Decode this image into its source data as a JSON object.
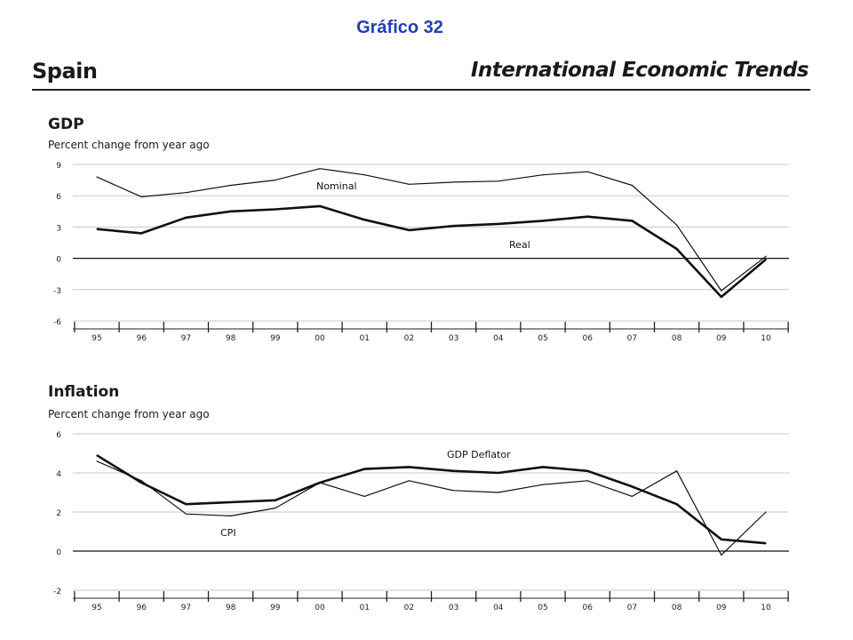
{
  "header": {
    "figure_title": "Gráfico 32",
    "country": "Spain",
    "series_title": "International Economic Trends"
  },
  "chart_data": [
    {
      "type": "line",
      "title": "GDP",
      "subtitle": "Percent change from year ago",
      "categories": [
        "95",
        "96",
        "97",
        "98",
        "99",
        "00",
        "01",
        "02",
        "03",
        "04",
        "05",
        "06",
        "07",
        "08",
        "09",
        "10"
      ],
      "ylim": [
        -6,
        9
      ],
      "yticks": [
        9,
        6,
        3,
        0,
        -3,
        -6
      ],
      "grid": true,
      "series": [
        {
          "name": "Nominal",
          "width": 1.2,
          "values": [
            7.8,
            5.9,
            6.3,
            7.0,
            7.5,
            8.6,
            8.0,
            7.1,
            7.3,
            7.4,
            8.0,
            8.3,
            7.0,
            3.2,
            -3.1,
            0.2
          ]
        },
        {
          "name": "Real",
          "width": 2.6,
          "values": [
            2.8,
            2.4,
            3.9,
            4.5,
            4.7,
            5.0,
            3.7,
            2.7,
            3.1,
            3.3,
            3.6,
            4.0,
            3.6,
            0.9,
            -3.7,
            -0.1
          ]
        }
      ],
      "annotations": [
        "Nominal",
        "Real"
      ]
    },
    {
      "type": "line",
      "title": "Inflation",
      "subtitle": "Percent change from year ago",
      "categories": [
        "95",
        "96",
        "97",
        "98",
        "99",
        "00",
        "01",
        "02",
        "03",
        "04",
        "05",
        "06",
        "07",
        "08",
        "09",
        "10"
      ],
      "ylim": [
        -2,
        6
      ],
      "yticks": [
        6,
        4,
        2,
        0,
        -2
      ],
      "grid": true,
      "series": [
        {
          "name": "CPI",
          "width": 1.2,
          "values": [
            4.6,
            3.6,
            1.9,
            1.8,
            2.2,
            3.5,
            2.8,
            3.6,
            3.1,
            3.0,
            3.4,
            3.6,
            2.8,
            4.1,
            -0.2,
            2.0
          ]
        },
        {
          "name": "GDP Deflator",
          "width": 2.6,
          "values": [
            4.9,
            3.5,
            2.4,
            2.5,
            2.6,
            3.5,
            4.2,
            4.3,
            4.1,
            4.0,
            4.3,
            4.1,
            3.3,
            2.4,
            0.6,
            0.4
          ]
        }
      ],
      "annotations": [
        "GDP Deflator",
        "CPI"
      ]
    }
  ]
}
